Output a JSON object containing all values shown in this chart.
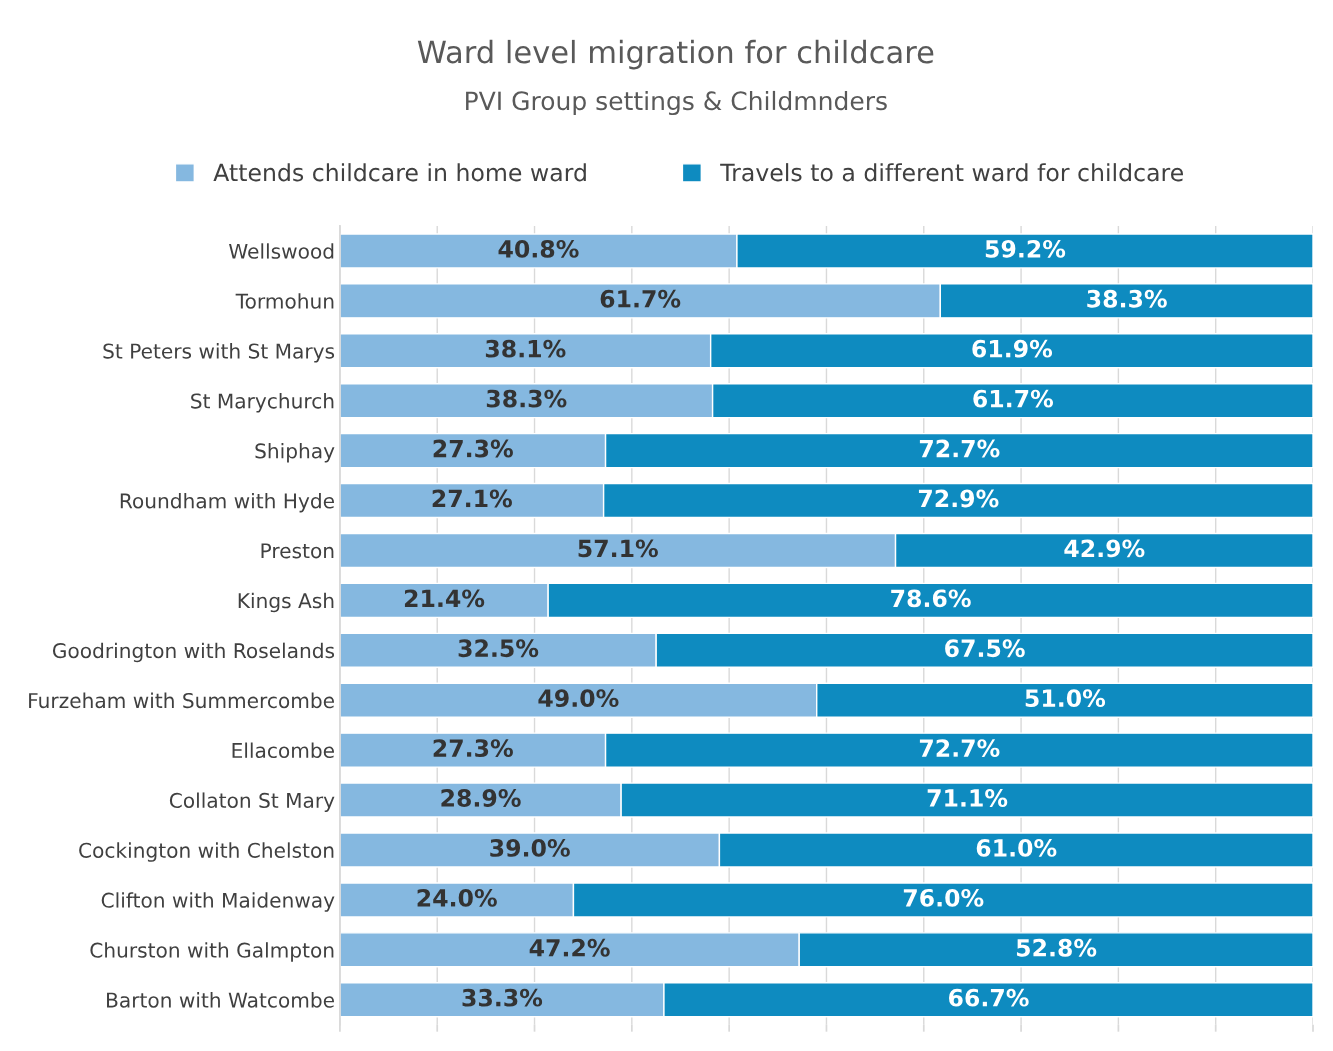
{
  "chart_data": {
    "type": "bar",
    "orientation": "horizontal",
    "stacked": true,
    "title": "Ward level migration for childcare",
    "subtitle": "PVI Group settings & Childmnders",
    "categories": [
      "Wellswood",
      "Tormohun",
      "St Peters with St Marys",
      "St Marychurch",
      "Shiphay",
      "Roundham with Hyde",
      "Preston",
      "Kings Ash",
      "Goodrington with Roselands",
      "Furzeham with Summercombe",
      "Ellacombe",
      "Collaton St Mary",
      "Cockington with Chelston",
      "Clifton with Maidenway",
      "Churston with Galmpton",
      "Barton with Watcombe"
    ],
    "series": [
      {
        "name": "Attends childcare in home ward",
        "color": "#85b8e0",
        "values": [
          40.8,
          61.7,
          38.1,
          38.3,
          27.3,
          27.1,
          57.1,
          21.4,
          32.5,
          49.0,
          27.3,
          28.9,
          39.0,
          24.0,
          47.2,
          33.3
        ],
        "value_labels": [
          "40.8%",
          "61.7%",
          "38.1%",
          "38.3%",
          "27.3%",
          "27.1%",
          "57.1%",
          "21.4%",
          "32.5%",
          "49.0%",
          "27.3%",
          "28.9%",
          "39.0%",
          "24.0%",
          "47.2%",
          "33.3%"
        ]
      },
      {
        "name": "Travels to a different ward for childcare",
        "color": "#0e8bc0",
        "values": [
          59.2,
          38.3,
          61.9,
          61.7,
          72.7,
          72.9,
          42.9,
          78.6,
          67.5,
          51.0,
          72.7,
          71.1,
          61.0,
          76.0,
          52.8,
          66.7
        ],
        "value_labels": [
          "59.2%",
          "38.3%",
          "61.9%",
          "61.7%",
          "72.7%",
          "72.9%",
          "42.9%",
          "78.6%",
          "67.5%",
          "51.0%",
          "72.7%",
          "71.1%",
          "61.0%",
          "76.0%",
          "52.8%",
          "66.7%"
        ]
      }
    ],
    "xlim": [
      0,
      100
    ],
    "xticks": [
      {
        "value": 0,
        "label": null
      },
      {
        "value": 10,
        "label": null
      },
      {
        "value": 20,
        "label": null
      },
      {
        "value": 30,
        "label": null
      },
      {
        "value": 40,
        "label": null
      },
      {
        "value": 50,
        "label": null
      },
      {
        "value": 60,
        "label": null
      },
      {
        "value": 70,
        "label": null
      },
      {
        "value": 80,
        "label": null
      },
      {
        "value": 90,
        "label": null
      },
      {
        "value": 100,
        "label": null
      }
    ],
    "grid": "x",
    "legend": "top",
    "tick_labels": "y"
  }
}
